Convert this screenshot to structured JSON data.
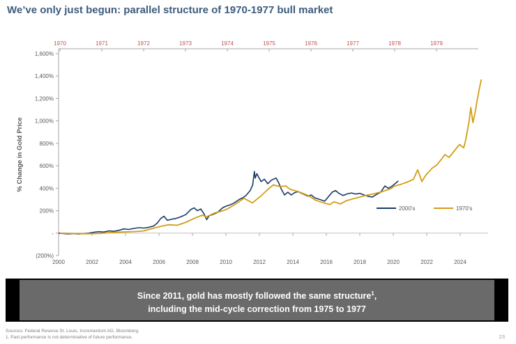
{
  "page": {
    "title": "We’ve only just begun: parallel structure of 1970-1977 bull market",
    "page_number": "23"
  },
  "banner": {
    "line1_main": "Since 2011, gold has mostly followed the same structure",
    "line1_sup": "1",
    "line1_end": ",",
    "line2": "including the mid-cycle correction from 1975 to 1977"
  },
  "footer": {
    "line1": "Sources: Federal Reserve St. Louis, Incrementum AG, Bloomberg.",
    "line2": "1. Past performance is not determinative of future performance."
  },
  "chart_data": {
    "type": "line",
    "title": "",
    "ylabel": "% Change in Gold Price",
    "ylim": [
      -200,
      1600
    ],
    "grid": "off",
    "legend_position": "inside-right-lower",
    "y_ticks": [
      {
        "value": 1600,
        "label": "1,600%"
      },
      {
        "value": 1400,
        "label": "1,400%"
      },
      {
        "value": 1200,
        "label": "1,200%"
      },
      {
        "value": 1000,
        "label": "1,000%"
      },
      {
        "value": 800,
        "label": "800%"
      },
      {
        "value": 600,
        "label": "600%"
      },
      {
        "value": 400,
        "label": "400%"
      },
      {
        "value": 200,
        "label": "200%"
      },
      {
        "value": 0,
        "label": "-"
      },
      {
        "value": -200,
        "label": "(200%)"
      }
    ],
    "top_axis": {
      "label_color": "#C0504D",
      "axis_color": "#A6A6A6",
      "years": [
        "1970",
        "1971",
        "1972",
        "1973",
        "1974",
        "1975",
        "1976",
        "1977",
        "1978",
        "1979"
      ],
      "range": [
        1970,
        1980
      ]
    },
    "bottom_axis": {
      "label_color": "#595959",
      "axis_color": "#A6A6A6",
      "years": [
        "2000",
        "2002",
        "2004",
        "2006",
        "2008",
        "2010",
        "2012",
        "2014",
        "2016",
        "2018",
        "2020",
        "2022",
        "2024"
      ],
      "range": [
        2000,
        2025
      ]
    },
    "legend": [
      {
        "name": "2000's",
        "color": "#1B3A66"
      },
      {
        "name": "1970's",
        "color": "#D29E14"
      }
    ],
    "series": [
      {
        "name": "2000's",
        "color": "#1B3A66",
        "x_axis": "bottom",
        "points": [
          [
            2000.0,
            0
          ],
          [
            2000.3,
            -4
          ],
          [
            2000.6,
            -7
          ],
          [
            2000.9,
            -4
          ],
          [
            2001.2,
            -8
          ],
          [
            2001.5,
            -5
          ],
          [
            2001.8,
            0
          ],
          [
            2002.1,
            8
          ],
          [
            2002.4,
            13
          ],
          [
            2002.7,
            10
          ],
          [
            2003.0,
            20
          ],
          [
            2003.3,
            16
          ],
          [
            2003.6,
            25
          ],
          [
            2003.9,
            38
          ],
          [
            2004.2,
            33
          ],
          [
            2004.5,
            42
          ],
          [
            2004.8,
            48
          ],
          [
            2005.1,
            45
          ],
          [
            2005.4,
            52
          ],
          [
            2005.7,
            65
          ],
          [
            2005.9,
            90
          ],
          [
            2006.1,
            130
          ],
          [
            2006.3,
            150
          ],
          [
            2006.5,
            115
          ],
          [
            2006.8,
            125
          ],
          [
            2007.0,
            130
          ],
          [
            2007.3,
            145
          ],
          [
            2007.6,
            165
          ],
          [
            2007.9,
            210
          ],
          [
            2008.1,
            225
          ],
          [
            2008.3,
            200
          ],
          [
            2008.5,
            215
          ],
          [
            2008.7,
            170
          ],
          [
            2008.85,
            120
          ],
          [
            2009.0,
            155
          ],
          [
            2009.2,
            165
          ],
          [
            2009.5,
            185
          ],
          [
            2009.8,
            225
          ],
          [
            2010.0,
            240
          ],
          [
            2010.3,
            255
          ],
          [
            2010.5,
            270
          ],
          [
            2010.8,
            300
          ],
          [
            2011.0,
            315
          ],
          [
            2011.2,
            335
          ],
          [
            2011.45,
            380
          ],
          [
            2011.6,
            430
          ],
          [
            2011.7,
            550
          ],
          [
            2011.75,
            490
          ],
          [
            2011.85,
            530
          ],
          [
            2011.95,
            500
          ],
          [
            2012.1,
            460
          ],
          [
            2012.3,
            480
          ],
          [
            2012.5,
            440
          ],
          [
            2012.7,
            470
          ],
          [
            2012.9,
            485
          ],
          [
            2013.0,
            490
          ],
          [
            2013.15,
            450
          ],
          [
            2013.3,
            395
          ],
          [
            2013.5,
            340
          ],
          [
            2013.7,
            365
          ],
          [
            2013.9,
            340
          ],
          [
            2014.1,
            360
          ],
          [
            2014.3,
            370
          ],
          [
            2014.6,
            350
          ],
          [
            2014.9,
            330
          ],
          [
            2015.1,
            340
          ],
          [
            2015.3,
            315
          ],
          [
            2015.6,
            300
          ],
          [
            2015.9,
            285
          ],
          [
            2016.1,
            320
          ],
          [
            2016.35,
            365
          ],
          [
            2016.55,
            380
          ],
          [
            2016.75,
            355
          ],
          [
            2017.0,
            335
          ],
          [
            2017.25,
            350
          ],
          [
            2017.5,
            358
          ],
          [
            2017.75,
            348
          ],
          [
            2018.0,
            355
          ],
          [
            2018.25,
            340
          ],
          [
            2018.5,
            328
          ],
          [
            2018.75,
            322
          ],
          [
            2019.0,
            345
          ],
          [
            2019.25,
            365
          ],
          [
            2019.5,
            420
          ],
          [
            2019.7,
            400
          ],
          [
            2019.9,
            415
          ],
          [
            2020.1,
            440
          ],
          [
            2020.3,
            465
          ]
        ]
      },
      {
        "name": "1970's",
        "color": "#D29E14",
        "x_axis": "top",
        "points": [
          [
            1970.0,
            0
          ],
          [
            1970.3,
            -4
          ],
          [
            1970.6,
            -6
          ],
          [
            1970.9,
            -3
          ],
          [
            1971.2,
            5
          ],
          [
            1971.5,
            10
          ],
          [
            1971.8,
            14
          ],
          [
            1972.0,
            20
          ],
          [
            1972.2,
            40
          ],
          [
            1972.4,
            60
          ],
          [
            1972.6,
            75
          ],
          [
            1972.8,
            70
          ],
          [
            1973.0,
            95
          ],
          [
            1973.2,
            130
          ],
          [
            1973.4,
            160
          ],
          [
            1973.5,
            145
          ],
          [
            1973.7,
            180
          ],
          [
            1973.9,
            200
          ],
          [
            1974.0,
            215
          ],
          [
            1974.2,
            260
          ],
          [
            1974.4,
            310
          ],
          [
            1974.5,
            290
          ],
          [
            1974.6,
            270
          ],
          [
            1974.8,
            330
          ],
          [
            1975.0,
            400
          ],
          [
            1975.1,
            430
          ],
          [
            1975.25,
            415
          ],
          [
            1975.4,
            420
          ],
          [
            1975.5,
            390
          ],
          [
            1975.7,
            370
          ],
          [
            1975.9,
            340
          ],
          [
            1976.0,
            320
          ],
          [
            1976.1,
            295
          ],
          [
            1976.3,
            270
          ],
          [
            1976.45,
            255
          ],
          [
            1976.55,
            280
          ],
          [
            1976.7,
            260
          ],
          [
            1976.85,
            290
          ],
          [
            1977.0,
            305
          ],
          [
            1977.15,
            320
          ],
          [
            1977.3,
            335
          ],
          [
            1977.5,
            350
          ],
          [
            1977.7,
            370
          ],
          [
            1977.9,
            395
          ],
          [
            1978.0,
            420
          ],
          [
            1978.15,
            435
          ],
          [
            1978.3,
            455
          ],
          [
            1978.45,
            480
          ],
          [
            1978.55,
            565
          ],
          [
            1978.65,
            460
          ],
          [
            1978.75,
            520
          ],
          [
            1978.9,
            580
          ],
          [
            1979.0,
            605
          ],
          [
            1979.1,
            650
          ],
          [
            1979.2,
            700
          ],
          [
            1979.3,
            675
          ],
          [
            1979.45,
            745
          ],
          [
            1979.55,
            790
          ],
          [
            1979.65,
            760
          ],
          [
            1979.7,
            835
          ],
          [
            1979.78,
            1000
          ],
          [
            1979.82,
            1120
          ],
          [
            1979.87,
            985
          ],
          [
            1979.92,
            1070
          ],
          [
            1979.97,
            1180
          ],
          [
            1980.02,
            1280
          ],
          [
            1980.07,
            1370
          ]
        ]
      }
    ]
  }
}
